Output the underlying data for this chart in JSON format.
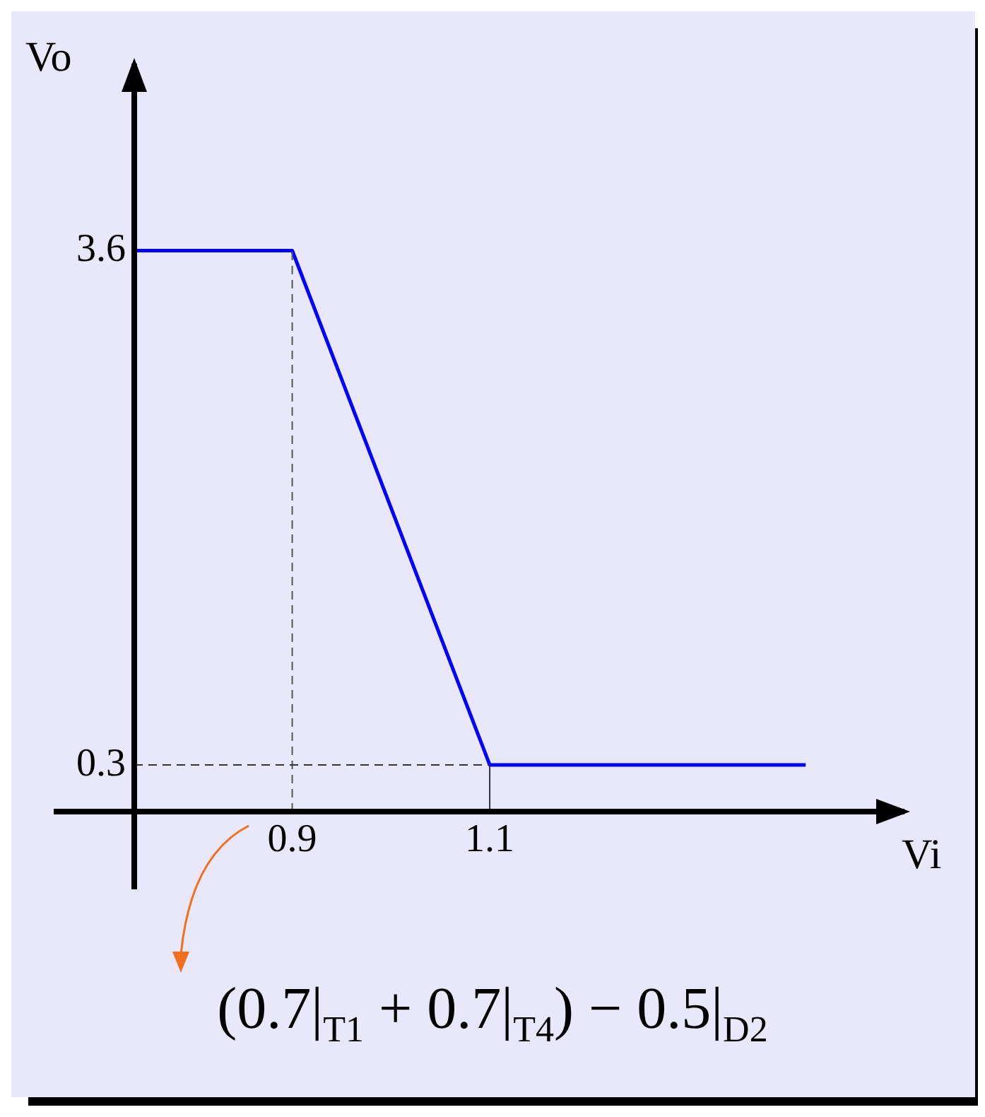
{
  "chart_data": {
    "type": "line",
    "xlabel": "Vi",
    "ylabel": "Vo",
    "x": [
      0.74,
      0.9,
      1.1,
      1.42
    ],
    "series": [
      {
        "color": "#0000ff",
        "values": [
          3.6,
          3.6,
          0.3,
          0.3
        ]
      },
      {
        "type": "line",
        "x": [
          1.1,
          1.1
        ],
        "color": "#333333",
        "values": [
          0,
          0.3
        ]
      }
    ],
    "xlim": [
      0.74,
      1.52
    ],
    "ylim": [
      0,
      4.8
    ],
    "xticks": [
      0.9,
      1.1
    ],
    "yticks": [
      3.6,
      0.3
    ],
    "grid": false,
    "legend": false,
    "marker": "none",
    "line_style": "solid",
    "ref_lines": [
      {
        "axis": "x",
        "value": 0.9,
        "line_style": "dashed",
        "color": "#555555"
      },
      {
        "axis": "y",
        "value": 0.3,
        "line_style": "dashed",
        "color": "#333333"
      }
    ],
    "annotations": [
      "(0.7|$_{T1}$ + 0.7|$_{T4}$) − 0.5|$_{D2}$"
    ]
  }
}
